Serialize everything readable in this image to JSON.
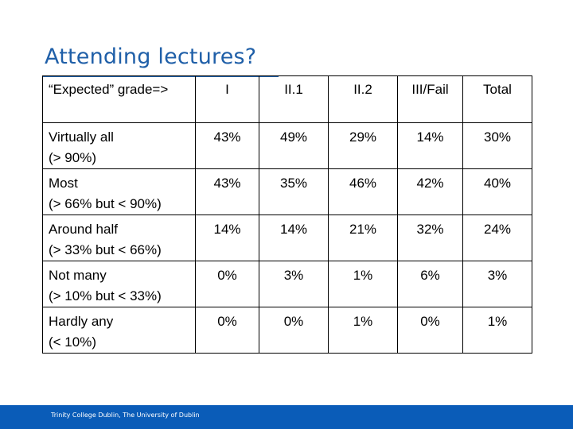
{
  "slide": {
    "title": "Attending lectures?",
    "footer": "Trinity College Dublin, The University of Dublin",
    "accent_color": "#1f5fa8",
    "footer_color": "#0a5cb8"
  },
  "table": {
    "header": [
      "“Expected” grade=>",
      "I",
      "II.1",
      "II.2",
      "III/Fail",
      "Total"
    ],
    "rows": [
      {
        "label_line1": "Virtually all",
        "label_line2": "(> 90%)",
        "values": [
          "43%",
          "49%",
          "29%",
          "14%",
          "30%"
        ]
      },
      {
        "label_line1": "Most",
        "label_line2": "(> 66% but < 90%)",
        "values": [
          "43%",
          "35%",
          "46%",
          "42%",
          "40%"
        ]
      },
      {
        "label_line1": "Around half",
        "label_line2": "(> 33% but < 66%)",
        "values": [
          "14%",
          "14%",
          "21%",
          "32%",
          "24%"
        ]
      },
      {
        "label_line1": "Not many",
        "label_line2": "(> 10% but < 33%)",
        "values": [
          "0%",
          "3%",
          "1%",
          "6%",
          "3%"
        ]
      },
      {
        "label_line1": "Hardly any",
        "label_line2": "(< 10%)",
        "values": [
          "0%",
          "0%",
          "1%",
          "0%",
          "1%"
        ]
      }
    ]
  }
}
